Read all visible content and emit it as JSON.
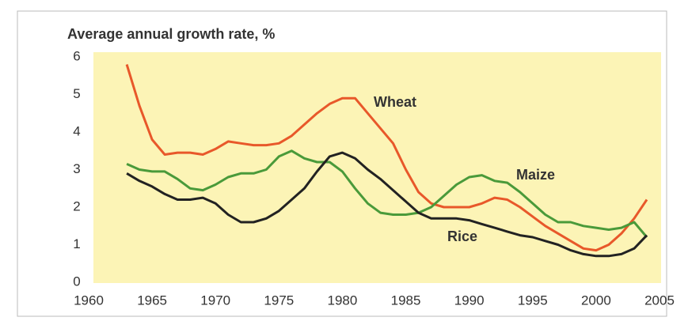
{
  "chart_data": {
    "type": "line",
    "y_axis_label": "Average annual growth rate, %",
    "x": [
      1963,
      1964,
      1965,
      1966,
      1967,
      1968,
      1969,
      1970,
      1971,
      1972,
      1973,
      1974,
      1975,
      1976,
      1977,
      1978,
      1979,
      1980,
      1981,
      1982,
      1983,
      1984,
      1985,
      1986,
      1987,
      1988,
      1989,
      1990,
      1991,
      1992,
      1993,
      1994,
      1995,
      1996,
      1997,
      1998,
      1999,
      2000,
      2001,
      2002,
      2003,
      2004
    ],
    "series": [
      {
        "name": "Wheat",
        "color": "#e8582a",
        "values": [
          5.8,
          4.7,
          3.8,
          3.4,
          3.45,
          3.45,
          3.4,
          3.55,
          3.75,
          3.7,
          3.65,
          3.65,
          3.7,
          3.9,
          4.2,
          4.5,
          4.75,
          4.9,
          4.9,
          4.5,
          4.1,
          3.7,
          3.0,
          2.4,
          2.1,
          2.0,
          2.0,
          2.0,
          2.1,
          2.25,
          2.2,
          2.0,
          1.75,
          1.5,
          1.3,
          1.1,
          0.9,
          0.85,
          1.0,
          1.3,
          1.7,
          2.2
        ]
      },
      {
        "name": "Maize",
        "color": "#4a9a3a",
        "values": [
          3.15,
          3.0,
          2.95,
          2.95,
          2.75,
          2.5,
          2.45,
          2.6,
          2.8,
          2.9,
          2.9,
          3.0,
          3.35,
          3.5,
          3.3,
          3.2,
          3.2,
          2.95,
          2.5,
          2.1,
          1.85,
          1.8,
          1.8,
          1.85,
          2.0,
          2.3,
          2.6,
          2.8,
          2.85,
          2.7,
          2.65,
          2.4,
          2.1,
          1.8,
          1.6,
          1.6,
          1.5,
          1.45,
          1.4,
          1.45,
          1.6,
          1.2
        ]
      },
      {
        "name": "Rice",
        "color": "#222222",
        "values": [
          2.9,
          2.7,
          2.55,
          2.35,
          2.2,
          2.2,
          2.25,
          2.1,
          1.8,
          1.6,
          1.6,
          1.7,
          1.9,
          2.2,
          2.5,
          2.95,
          3.35,
          3.45,
          3.3,
          3.0,
          2.75,
          2.45,
          2.15,
          1.85,
          1.7,
          1.7,
          1.7,
          1.65,
          1.55,
          1.45,
          1.35,
          1.25,
          1.2,
          1.1,
          1.0,
          0.85,
          0.75,
          0.7,
          0.7,
          0.75,
          0.9,
          1.25
        ]
      }
    ],
    "xlim": [
      1960,
      2005
    ],
    "xticks": [
      1960,
      1965,
      1970,
      1975,
      1980,
      1985,
      1990,
      1995,
      2000,
      2005
    ],
    "ylim": [
      0,
      6
    ],
    "yticks": [
      0,
      1,
      2,
      3,
      4,
      5,
      6
    ]
  }
}
